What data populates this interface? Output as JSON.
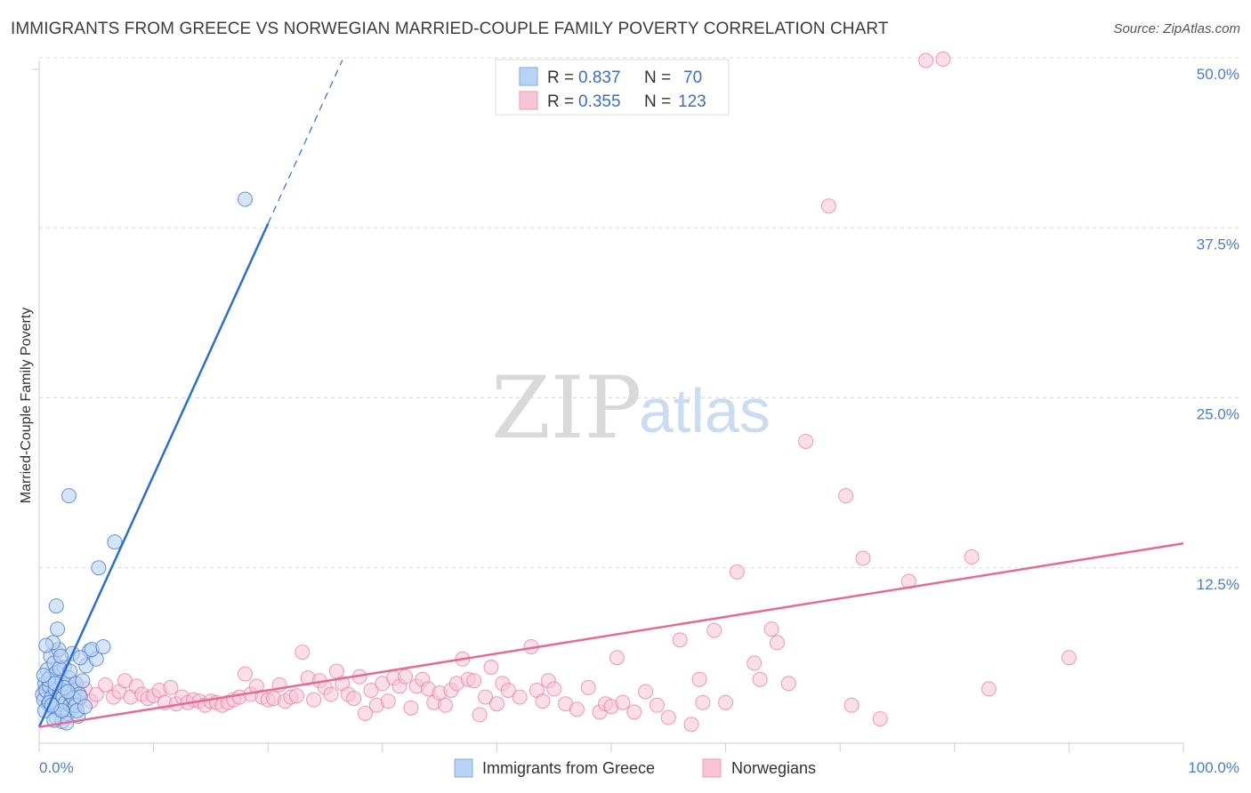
{
  "header": {
    "title": "IMMIGRANTS FROM GREECE VS NORWEGIAN MARRIED-COUPLE FAMILY POVERTY CORRELATION CHART",
    "source": "Source: ZipAtlas.com"
  },
  "watermark": {
    "zip": "ZIP",
    "atlas": "atlas"
  },
  "colors": {
    "blue": "#4a7cc7",
    "blue_fill": "#b9d3f5",
    "blue_line": "#2b6fd1",
    "pink": "#e87aa0",
    "pink_fill": "#f7c4d5",
    "pink_line": "#e46a98"
  },
  "legend": {
    "r_label": "R =",
    "n_label": "N =",
    "series": [
      {
        "r": "0.837",
        "n": "70"
      },
      {
        "r": "0.355",
        "n": "123"
      }
    ]
  },
  "chart_data": {
    "type": "scatter",
    "title": "IMMIGRANTS FROM GREECE VS NORWEGIAN MARRIED-COUPLE FAMILY POVERTY CORRELATION CHART",
    "xlabel": "",
    "ylabel": "Married-Couple Family Poverty",
    "xlim": [
      0,
      100
    ],
    "ylim": [
      0,
      52
    ],
    "x_tick_labels": [
      "0.0%",
      "100.0%"
    ],
    "y_ticks": [
      12.5,
      25.0,
      37.5,
      50.0
    ],
    "y_tick_labels": [
      "12.5%",
      "25.0%",
      "37.5%",
      "50.0%"
    ],
    "series": [
      {
        "name": "Immigrants from Greece",
        "color": "#4a7cc7",
        "trend": {
          "x0": 0,
          "y0": 0.8,
          "x1": 20,
          "y1": 37.8,
          "dash_to_x": 26.5
        },
        "points": [
          [
            0.3,
            3.2
          ],
          [
            0.4,
            2.8
          ],
          [
            0.5,
            4.0
          ],
          [
            0.6,
            3.5
          ],
          [
            0.7,
            5.0
          ],
          [
            0.8,
            2.5
          ],
          [
            0.9,
            3.8
          ],
          [
            1.0,
            4.5
          ],
          [
            1.0,
            6.0
          ],
          [
            1.1,
            3.0
          ],
          [
            1.2,
            2.2
          ],
          [
            1.3,
            5.5
          ],
          [
            1.4,
            3.6
          ],
          [
            1.5,
            1.5
          ],
          [
            1.5,
            4.8
          ],
          [
            1.6,
            2.8
          ],
          [
            1.7,
            6.5
          ],
          [
            1.8,
            3.3
          ],
          [
            1.9,
            2.0
          ],
          [
            2.0,
            4.2
          ],
          [
            2.0,
            1.2
          ],
          [
            2.1,
            3.0
          ],
          [
            2.2,
            5.2
          ],
          [
            2.3,
            2.6
          ],
          [
            2.4,
            3.9
          ],
          [
            2.5,
            1.8
          ],
          [
            2.6,
            4.4
          ],
          [
            2.7,
            2.4
          ],
          [
            2.8,
            3.1
          ],
          [
            2.9,
            6.2
          ],
          [
            3.0,
            2.2
          ],
          [
            3.1,
            3.5
          ],
          [
            3.2,
            4.0
          ],
          [
            3.3,
            2.7
          ],
          [
            3.4,
            1.6
          ],
          [
            3.5,
            3.2
          ],
          [
            0.5,
            2.0
          ],
          [
            0.8,
            4.3
          ],
          [
            1.2,
            7.0
          ],
          [
            1.6,
            8.0
          ],
          [
            1.5,
            9.7
          ],
          [
            2.6,
            17.8
          ],
          [
            4.1,
            5.3
          ],
          [
            4.4,
            6.4
          ],
          [
            5.0,
            5.8
          ],
          [
            4.6,
            6.5
          ],
          [
            3.6,
            5.9
          ],
          [
            3.8,
            4.2
          ],
          [
            3.0,
            2.9
          ],
          [
            2.4,
            1.1
          ],
          [
            1.3,
            1.3
          ],
          [
            0.9,
            2.6
          ],
          [
            2.2,
            3.7
          ],
          [
            3.2,
            2.4
          ],
          [
            1.8,
            5.1
          ],
          [
            2.7,
            4.9
          ],
          [
            0.6,
            6.8
          ],
          [
            1.4,
            4.0
          ],
          [
            2.0,
            2.0
          ],
          [
            3.6,
            3.0
          ],
          [
            5.6,
            6.7
          ],
          [
            6.6,
            14.4
          ],
          [
            5.2,
            12.5
          ],
          [
            18.0,
            39.6
          ],
          [
            2.5,
            3.4
          ],
          [
            1.9,
            6.0
          ],
          [
            3.3,
            2.0
          ],
          [
            0.4,
            4.6
          ],
          [
            1.1,
            2.4
          ],
          [
            4.0,
            2.3
          ]
        ]
      },
      {
        "name": "Norwegians",
        "color": "#e87aa0",
        "trend": {
          "x0": 0,
          "y0": 0.8,
          "x1": 100,
          "y1": 14.3
        },
        "points": [
          [
            0.5,
            3.5
          ],
          [
            1.0,
            2.8
          ],
          [
            1.5,
            6.3
          ],
          [
            2.0,
            3.3
          ],
          [
            2.5,
            3.8
          ],
          [
            3.0,
            4.0
          ],
          [
            3.5,
            3.0
          ],
          [
            4.0,
            3.6
          ],
          [
            4.5,
            2.7
          ],
          [
            5.0,
            3.2
          ],
          [
            5.8,
            3.9
          ],
          [
            6.5,
            3.0
          ],
          [
            7.0,
            3.4
          ],
          [
            7.5,
            4.2
          ],
          [
            8.0,
            3.0
          ],
          [
            8.5,
            3.8
          ],
          [
            9.0,
            3.2
          ],
          [
            9.5,
            2.9
          ],
          [
            10.0,
            3.1
          ],
          [
            10.5,
            3.5
          ],
          [
            11.0,
            2.6
          ],
          [
            11.5,
            3.7
          ],
          [
            12.0,
            2.5
          ],
          [
            12.5,
            3.0
          ],
          [
            13.0,
            2.6
          ],
          [
            13.5,
            2.8
          ],
          [
            14.0,
            2.7
          ],
          [
            14.5,
            2.4
          ],
          [
            15.0,
            2.7
          ],
          [
            15.5,
            2.6
          ],
          [
            16.0,
            2.4
          ],
          [
            16.5,
            2.6
          ],
          [
            17.0,
            2.8
          ],
          [
            17.5,
            3.0
          ],
          [
            18.0,
            4.7
          ],
          [
            18.5,
            3.2
          ],
          [
            19.0,
            3.8
          ],
          [
            19.5,
            3.0
          ],
          [
            20.0,
            2.8
          ],
          [
            20.5,
            2.9
          ],
          [
            21.0,
            3.9
          ],
          [
            21.5,
            2.7
          ],
          [
            22.0,
            3.0
          ],
          [
            22.5,
            3.1
          ],
          [
            23.0,
            6.3
          ],
          [
            23.5,
            4.4
          ],
          [
            24.0,
            2.8
          ],
          [
            24.5,
            4.2
          ],
          [
            25.0,
            3.7
          ],
          [
            25.5,
            3.2
          ],
          [
            26.0,
            4.9
          ],
          [
            26.5,
            4.0
          ],
          [
            27.0,
            3.2
          ],
          [
            27.5,
            2.9
          ],
          [
            28.0,
            4.5
          ],
          [
            28.5,
            1.8
          ],
          [
            29.0,
            3.5
          ],
          [
            29.5,
            2.4
          ],
          [
            30.0,
            4.0
          ],
          [
            30.5,
            2.7
          ],
          [
            31.0,
            4.4
          ],
          [
            31.5,
            3.8
          ],
          [
            32.0,
            4.5
          ],
          [
            32.5,
            2.2
          ],
          [
            33.0,
            3.8
          ],
          [
            33.5,
            4.3
          ],
          [
            34.0,
            3.6
          ],
          [
            34.5,
            2.6
          ],
          [
            35.0,
            3.3
          ],
          [
            35.5,
            2.4
          ],
          [
            36.0,
            3.5
          ],
          [
            36.5,
            4.0
          ],
          [
            37.0,
            5.8
          ],
          [
            37.5,
            4.3
          ],
          [
            38.0,
            4.2
          ],
          [
            38.5,
            1.7
          ],
          [
            39.0,
            3.0
          ],
          [
            39.5,
            5.2
          ],
          [
            40.0,
            2.5
          ],
          [
            40.5,
            4.0
          ],
          [
            41.0,
            3.5
          ],
          [
            42.0,
            3.0
          ],
          [
            43.0,
            6.7
          ],
          [
            43.5,
            3.5
          ],
          [
            44.0,
            2.7
          ],
          [
            44.5,
            4.2
          ],
          [
            45.0,
            3.6
          ],
          [
            46.0,
            2.5
          ],
          [
            47.0,
            2.1
          ],
          [
            48.0,
            3.7
          ],
          [
            49.0,
            1.9
          ],
          [
            49.5,
            2.5
          ],
          [
            50.0,
            2.3
          ],
          [
            50.5,
            5.9
          ],
          [
            51.0,
            2.6
          ],
          [
            52.0,
            1.9
          ],
          [
            53.0,
            3.4
          ],
          [
            54.0,
            2.4
          ],
          [
            55.0,
            1.5
          ],
          [
            56.0,
            7.2
          ],
          [
            57.0,
            1.0
          ],
          [
            57.7,
            4.3
          ],
          [
            58.0,
            2.6
          ],
          [
            59.0,
            7.9
          ],
          [
            60.0,
            2.6
          ],
          [
            61.0,
            12.2
          ],
          [
            62.5,
            5.5
          ],
          [
            64.0,
            8.0
          ],
          [
            64.5,
            7.0
          ],
          [
            63.0,
            4.3
          ],
          [
            65.5,
            4.0
          ],
          [
            67.0,
            21.8
          ],
          [
            69.0,
            39.1
          ],
          [
            70.5,
            17.8
          ],
          [
            71.0,
            2.4
          ],
          [
            72.0,
            13.2
          ],
          [
            73.5,
            1.4
          ],
          [
            76.0,
            11.5
          ],
          [
            77.5,
            49.8
          ],
          [
            79.0,
            49.9
          ],
          [
            83.0,
            3.6
          ],
          [
            90.0,
            5.9
          ],
          [
            81.5,
            13.3
          ]
        ]
      }
    ]
  },
  "bottom_legend": [
    {
      "label": "Immigrants from Greece"
    },
    {
      "label": "Norwegians"
    }
  ]
}
